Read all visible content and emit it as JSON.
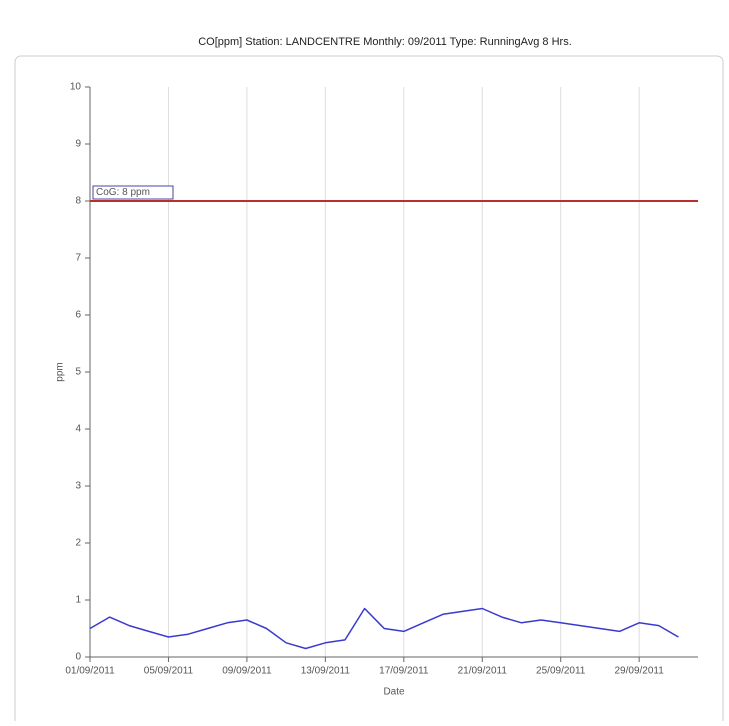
{
  "chart_data": {
    "type": "line",
    "title": "CO[ppm] Station: LANDCENTRE  Monthly: 09/2011  Type: RunningAvg 8 Hrs.",
    "y_label": "ppm",
    "x_label": "Date",
    "x": [
      "2011-09-01",
      "2011-09-02",
      "2011-09-03",
      "2011-09-04",
      "2011-09-05",
      "2011-09-06",
      "2011-09-07",
      "2011-09-08",
      "2011-09-09",
      "2011-09-10",
      "2011-09-11",
      "2011-09-12",
      "2011-09-13",
      "2011-09-14",
      "2011-09-15",
      "2011-09-16",
      "2011-09-17",
      "2011-09-18",
      "2011-09-19",
      "2011-09-20",
      "2011-09-21",
      "2011-09-22",
      "2011-09-23",
      "2011-09-24",
      "2011-09-25",
      "2011-09-26",
      "2011-09-27",
      "2011-09-28",
      "2011-09-29",
      "2011-09-30",
      "2011-10-01"
    ],
    "values": [
      0.5,
      0.7,
      0.55,
      0.45,
      0.35,
      0.4,
      0.5,
      0.6,
      0.65,
      0.5,
      0.25,
      0.15,
      0.25,
      0.3,
      0.85,
      0.5,
      0.45,
      0.6,
      0.75,
      0.8,
      0.85,
      0.7,
      0.6,
      0.65,
      0.6,
      0.55,
      0.5,
      0.45,
      0.6,
      0.55,
      0.35
    ],
    "color": "#3a3ad0",
    "threshold": {
      "value": 8,
      "label": "CoG: 8 ppm",
      "color": "#b8302a"
    },
    "xlim": [
      "2011-09-01",
      "2011-10-02"
    ],
    "xticks": [
      {
        "value": "2011-09-01",
        "label": "01/09/2011"
      },
      {
        "value": "2011-09-05",
        "label": "05/09/2011"
      },
      {
        "value": "2011-09-09",
        "label": "09/09/2011"
      },
      {
        "value": "2011-09-13",
        "label": "13/09/2011"
      },
      {
        "value": "2011-09-17",
        "label": "17/09/2011"
      },
      {
        "value": "2011-09-21",
        "label": "21/09/2011"
      },
      {
        "value": "2011-09-25",
        "label": "25/09/2011"
      },
      {
        "value": "2011-09-29",
        "label": "29/09/2011"
      }
    ],
    "ylim": [
      0,
      10
    ],
    "yticks": [
      0,
      1,
      2,
      3,
      4,
      5,
      6,
      7,
      8,
      9,
      10
    ],
    "grid": true
  }
}
